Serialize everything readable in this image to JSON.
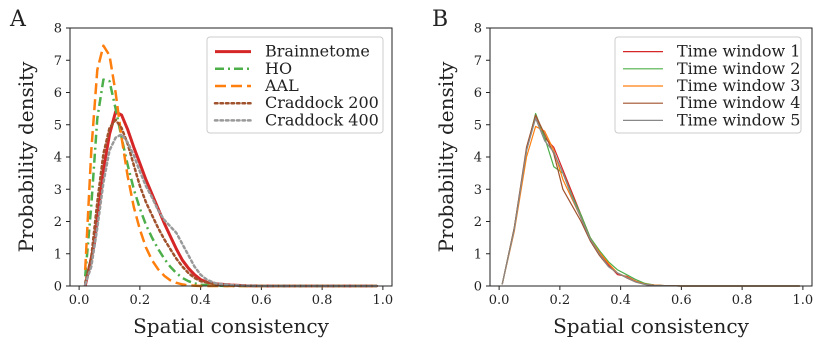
{
  "chart_data": [
    {
      "panel_label": "A",
      "type": "line",
      "xlabel": "Spatial consistency",
      "ylabel": "Probability density",
      "xlim": [
        -0.03,
        1.03
      ],
      "ylim": [
        0,
        8
      ],
      "xticks": [
        0.0,
        0.2,
        0.4,
        0.6,
        0.8,
        1.0
      ],
      "xtick_labels": [
        "0.0",
        "0.2",
        "0.4",
        "0.6",
        "0.8",
        "1.0"
      ],
      "yticks": [
        0,
        1,
        2,
        3,
        4,
        5,
        6,
        7,
        8
      ],
      "ytick_labels": [
        "0",
        "1",
        "2",
        "3",
        "4",
        "5",
        "6",
        "7",
        "8"
      ],
      "grid": false,
      "legend_position": "top-right",
      "series": [
        {
          "name": "Brainnetome",
          "color": "#d62728",
          "dash": "solid",
          "width": 3,
          "x": [
            0.02,
            0.05,
            0.08,
            0.1,
            0.12,
            0.14,
            0.16,
            0.18,
            0.2,
            0.22,
            0.24,
            0.26,
            0.28,
            0.3,
            0.32,
            0.34,
            0.36,
            0.38,
            0.4,
            0.42,
            0.45,
            0.5,
            0.55,
            0.6,
            0.7,
            0.8,
            0.9,
            0.98
          ],
          "y": [
            0.0,
            1.3,
            3.6,
            4.7,
            5.4,
            5.3,
            4.85,
            4.3,
            3.8,
            3.3,
            2.85,
            2.4,
            1.95,
            1.55,
            1.15,
            0.8,
            0.55,
            0.35,
            0.2,
            0.12,
            0.07,
            0.03,
            0.01,
            0.0,
            0.0,
            0.0,
            0.0,
            0.0
          ]
        },
        {
          "name": "HO",
          "color": "#4daf4a",
          "dash": "dashdot",
          "width": 2.5,
          "x": [
            0.02,
            0.04,
            0.06,
            0.08,
            0.1,
            0.12,
            0.14,
            0.16,
            0.18,
            0.2,
            0.22,
            0.24,
            0.26,
            0.28,
            0.3,
            0.32,
            0.34,
            0.36,
            0.38,
            0.4,
            0.45,
            0.5,
            0.6,
            0.8,
            0.98
          ],
          "y": [
            0.3,
            2.5,
            5.2,
            6.4,
            6.35,
            5.5,
            4.6,
            3.75,
            3.0,
            2.4,
            1.9,
            1.5,
            1.15,
            0.85,
            0.6,
            0.4,
            0.25,
            0.15,
            0.08,
            0.04,
            0.01,
            0.0,
            0.0,
            0.0,
            0.0
          ]
        },
        {
          "name": "AAL",
          "color": "#ff7f0e",
          "dash": "dashed",
          "width": 2.5,
          "x": [
            0.02,
            0.04,
            0.06,
            0.08,
            0.1,
            0.12,
            0.14,
            0.16,
            0.18,
            0.2,
            0.22,
            0.24,
            0.26,
            0.28,
            0.3,
            0.32,
            0.34,
            0.36,
            0.4,
            0.5,
            0.6,
            0.8,
            0.98
          ],
          "y": [
            0.5,
            4.2,
            6.7,
            7.45,
            7.15,
            6.0,
            4.6,
            3.4,
            2.45,
            1.75,
            1.2,
            0.8,
            0.52,
            0.32,
            0.18,
            0.1,
            0.05,
            0.02,
            0.0,
            0.0,
            0.0,
            0.0,
            0.0
          ]
        },
        {
          "name": "Craddock 200",
          "color": "#a0522d",
          "dash": "dotted",
          "width": 2.5,
          "x": [
            0.02,
            0.04,
            0.06,
            0.08,
            0.1,
            0.12,
            0.14,
            0.16,
            0.18,
            0.2,
            0.22,
            0.24,
            0.26,
            0.28,
            0.3,
            0.32,
            0.34,
            0.36,
            0.38,
            0.4,
            0.45,
            0.5,
            0.6,
            0.8,
            0.98
          ],
          "y": [
            0.1,
            0.9,
            2.6,
            4.1,
            4.9,
            5.15,
            4.9,
            4.4,
            3.75,
            3.1,
            2.6,
            2.2,
            1.8,
            1.45,
            1.15,
            0.85,
            0.6,
            0.4,
            0.25,
            0.15,
            0.05,
            0.02,
            0.0,
            0.0,
            0.0
          ]
        },
        {
          "name": "Craddock 400",
          "color": "#999999",
          "dash": "dotted",
          "width": 2.5,
          "x": [
            0.02,
            0.04,
            0.06,
            0.08,
            0.1,
            0.12,
            0.14,
            0.16,
            0.18,
            0.2,
            0.22,
            0.24,
            0.26,
            0.28,
            0.3,
            0.32,
            0.34,
            0.36,
            0.38,
            0.4,
            0.42,
            0.45,
            0.5,
            0.55,
            0.6,
            0.8,
            0.98
          ],
          "y": [
            0.05,
            0.6,
            1.8,
            3.2,
            4.2,
            4.6,
            4.7,
            4.45,
            4.05,
            3.55,
            3.1,
            2.75,
            2.35,
            2.05,
            1.85,
            1.65,
            1.3,
            0.95,
            0.6,
            0.35,
            0.2,
            0.08,
            0.03,
            0.01,
            0.0,
            0.0,
            0.0
          ]
        }
      ]
    },
    {
      "panel_label": "B",
      "type": "line",
      "xlabel": "Spatial consistency",
      "ylabel": "Probability density",
      "xlim": [
        -0.03,
        1.03
      ],
      "ylim": [
        0,
        8
      ],
      "xticks": [
        0.0,
        0.2,
        0.4,
        0.6,
        0.8,
        1.0
      ],
      "xtick_labels": [
        "0.0",
        "0.2",
        "0.4",
        "0.6",
        "0.8",
        "1.0"
      ],
      "yticks": [
        0,
        1,
        2,
        3,
        4,
        5,
        6,
        7,
        8
      ],
      "ytick_labels": [
        "0",
        "1",
        "2",
        "3",
        "4",
        "5",
        "6",
        "7",
        "8"
      ],
      "grid": false,
      "legend_position": "top-right",
      "series": [
        {
          "name": "Time window 1",
          "color": "#d62728",
          "dash": "solid",
          "width": 1.2,
          "x": [
            0.01,
            0.05,
            0.09,
            0.12,
            0.15,
            0.18,
            0.21,
            0.24,
            0.27,
            0.3,
            0.33,
            0.36,
            0.39,
            0.42,
            0.45,
            0.48,
            0.51,
            0.55,
            0.6,
            0.7,
            0.8,
            0.9,
            0.99
          ],
          "y": [
            0.05,
            1.8,
            4.2,
            5.3,
            4.6,
            4.3,
            3.6,
            2.9,
            2.2,
            1.5,
            1.05,
            0.65,
            0.35,
            0.3,
            0.15,
            0.06,
            0.03,
            0.01,
            0.0,
            0.0,
            0.0,
            0.0,
            0.0
          ]
        },
        {
          "name": "Time window 2",
          "color": "#4daf4a",
          "dash": "solid",
          "width": 1.2,
          "x": [
            0.01,
            0.05,
            0.09,
            0.12,
            0.15,
            0.18,
            0.21,
            0.24,
            0.27,
            0.3,
            0.33,
            0.36,
            0.39,
            0.42,
            0.45,
            0.48,
            0.51,
            0.55,
            0.6,
            0.7,
            0.8,
            0.9,
            0.99
          ],
          "y": [
            0.05,
            1.8,
            4.2,
            5.35,
            4.6,
            3.7,
            3.5,
            2.8,
            2.2,
            1.5,
            1.1,
            0.75,
            0.5,
            0.35,
            0.2,
            0.08,
            0.03,
            0.01,
            0.0,
            0.0,
            0.0,
            0.0,
            0.0
          ]
        },
        {
          "name": "Time window 3",
          "color": "#ff7f0e",
          "dash": "solid",
          "width": 1.2,
          "x": [
            0.01,
            0.05,
            0.09,
            0.12,
            0.15,
            0.18,
            0.21,
            0.24,
            0.27,
            0.3,
            0.33,
            0.36,
            0.39,
            0.42,
            0.45,
            0.48,
            0.51,
            0.55,
            0.6,
            0.7,
            0.8,
            0.9,
            0.99
          ],
          "y": [
            0.05,
            1.7,
            4.0,
            4.95,
            4.8,
            4.2,
            3.3,
            2.7,
            2.1,
            1.45,
            1.05,
            0.7,
            0.4,
            0.28,
            0.14,
            0.06,
            0.03,
            0.01,
            0.0,
            0.0,
            0.0,
            0.0,
            0.0
          ]
        },
        {
          "name": "Time window 4",
          "color": "#a0522d",
          "dash": "solid",
          "width": 1.2,
          "x": [
            0.01,
            0.05,
            0.09,
            0.12,
            0.15,
            0.18,
            0.21,
            0.24,
            0.27,
            0.3,
            0.33,
            0.36,
            0.39,
            0.42,
            0.45,
            0.48,
            0.51,
            0.55,
            0.6,
            0.7,
            0.8,
            0.9,
            0.99
          ],
          "y": [
            0.05,
            1.8,
            4.3,
            5.3,
            4.7,
            4.1,
            3.0,
            2.5,
            2.0,
            1.4,
            0.95,
            0.6,
            0.4,
            0.25,
            0.12,
            0.05,
            0.02,
            0.01,
            0.0,
            0.0,
            0.0,
            0.0,
            0.0
          ]
        },
        {
          "name": "Time window 5",
          "color": "#888888",
          "dash": "solid",
          "width": 1.2,
          "x": [
            0.01,
            0.05,
            0.09,
            0.12,
            0.15,
            0.18,
            0.21,
            0.24,
            0.27,
            0.3,
            0.33,
            0.36,
            0.39,
            0.42,
            0.45,
            0.48,
            0.51,
            0.55,
            0.6,
            0.7,
            0.8,
            0.9,
            0.99
          ],
          "y": [
            0.05,
            1.75,
            4.2,
            5.2,
            4.5,
            4.15,
            3.5,
            2.75,
            2.1,
            1.45,
            1.0,
            0.6,
            0.4,
            0.26,
            0.12,
            0.05,
            0.02,
            0.01,
            0.0,
            0.0,
            0.0,
            0.0,
            0.0
          ]
        }
      ]
    }
  ]
}
